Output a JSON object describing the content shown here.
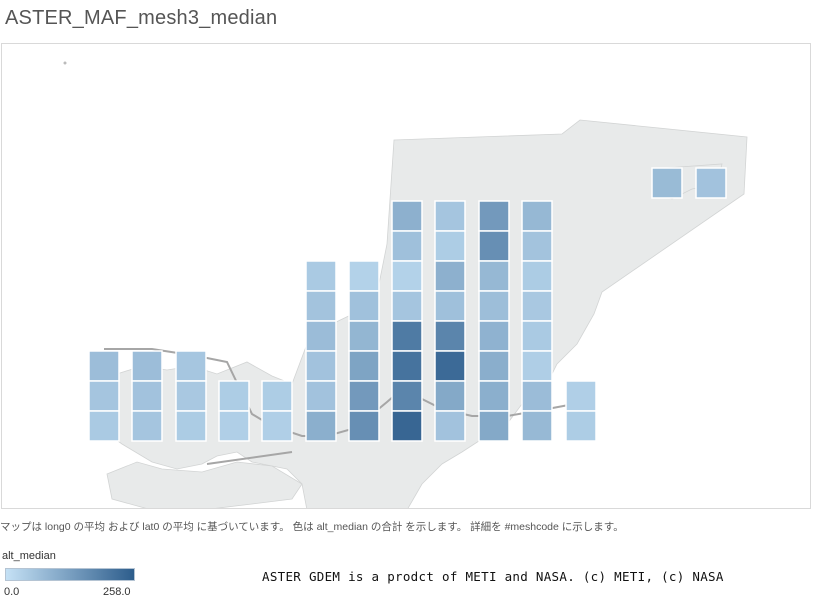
{
  "title": "ASTER_MAF_mesh3_median",
  "caption": "マップは long0 の平均 および lat0 の平均 に基づいています。 色は alt_median の合計 を示します。 詳細を #meshcode に示します。",
  "legend": {
    "title": "alt_median",
    "min_label": "0.0",
    "max_label": "258.0",
    "color_low": "#c5e1f5",
    "color_high": "#2d5d8c"
  },
  "attribution": "ASTER GDEM is a prodct of METI and NASA. (c) METI, (c) NASA",
  "colors": {
    "land": "#e8eaea",
    "road": "#a6a6a6",
    "tile_border": "#ffffff"
  },
  "chart_data": {
    "type": "heatmap",
    "value_range": [
      0,
      258
    ],
    "columns": [
      {
        "values": [
          70,
          55,
          45
        ]
      },
      {
        "values": [
          70,
          60,
          55
        ]
      },
      {
        "values": [
          52,
          48,
          42
        ]
      },
      {
        "values": [
          40,
          35
        ]
      },
      {
        "values": [
          40,
          35
        ]
      },
      {
        "values": [
          45,
          58,
          72,
          60,
          60,
          98
        ]
      },
      {
        "values": [
          30,
          62,
          85,
          120,
          140,
          160
        ]
      },
      {
        "values": [
          95,
          65,
          30,
          55,
          200,
          215,
          180,
          240
        ]
      },
      {
        "values": [
          55,
          40,
          95,
          65,
          180,
          232,
          110,
          60
        ]
      },
      {
        "values": [
          140,
          160,
          80,
          68,
          92,
          100,
          98,
          110
        ]
      },
      {
        "values": [
          80,
          58,
          42,
          48,
          45,
          38,
          72,
          78
        ]
      },
      {
        "values": [
          35,
          40
        ]
      },
      {
        "values": [
          75
        ]
      },
      {
        "values": [
          60
        ]
      }
    ]
  }
}
